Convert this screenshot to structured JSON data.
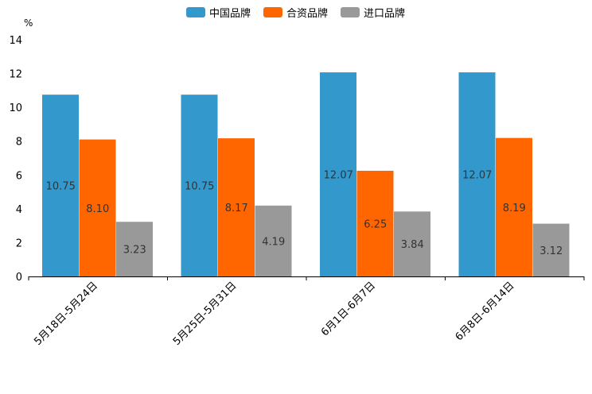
{
  "chart_data": {
    "type": "bar",
    "unit": "%",
    "categories": [
      "5月18日-5月24日",
      "5月25日-5月31日",
      "6月1日-6月7日",
      "6月8日-6月14日"
    ],
    "series": [
      {
        "name": "中国品牌",
        "color": "#3399cc",
        "values": [
          10.75,
          10.75,
          12.07,
          12.07
        ],
        "labels": [
          "10.75",
          "10.75",
          "12.07",
          "12.07"
        ]
      },
      {
        "name": "合资品牌",
        "color": "#ff6600",
        "values": [
          8.1,
          8.17,
          6.25,
          8.19
        ],
        "labels": [
          "8.10",
          "8.17",
          "6.25",
          "8.19"
        ]
      },
      {
        "name": "进口品牌",
        "color": "#999999",
        "values": [
          3.23,
          4.19,
          3.84,
          3.12
        ],
        "labels": [
          "3.23",
          "4.19",
          "3.84",
          "3.12"
        ]
      }
    ],
    "y_ticks": [
      "0",
      "2",
      "4",
      "6",
      "8",
      "10",
      "12",
      "14"
    ],
    "ylim": [
      0,
      14
    ],
    "legend_position": "top-center",
    "grid": false
  }
}
